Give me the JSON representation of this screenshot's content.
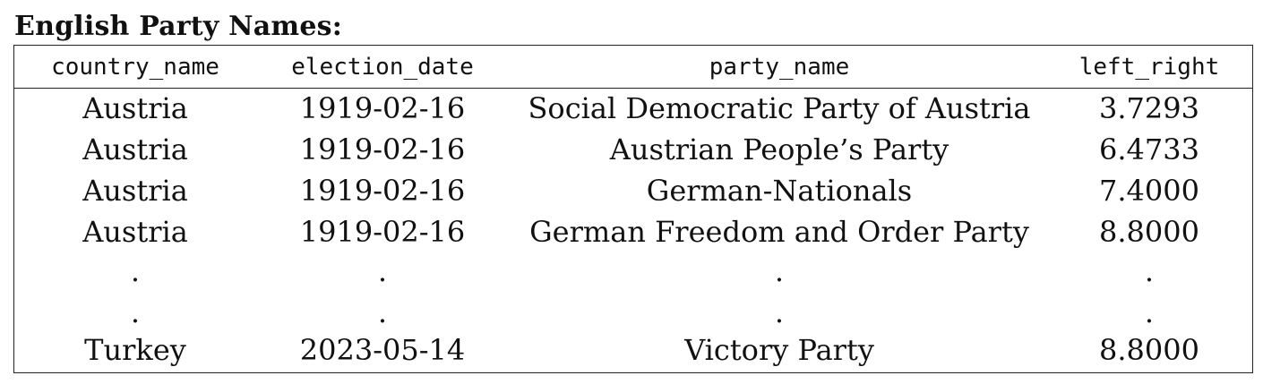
{
  "title": "English Party Names:",
  "columns": [
    "country_name",
    "election_date",
    "party_name",
    "left_right"
  ],
  "rows": [
    [
      "Austria",
      "1919-02-16",
      "Social Democratic Party of Austria",
      "3.7293"
    ],
    [
      "Austria",
      "1919-02-16",
      "Austrian People’s Party",
      "6.4733"
    ],
    [
      "Austria",
      "1919-02-16",
      "German-Nationals",
      "7.4000"
    ],
    [
      "Austria",
      "1919-02-16",
      "German Freedom and Order Party",
      "8.8000"
    ],
    [
      ".",
      ".",
      ".",
      "."
    ],
    [
      ".",
      ".",
      ".",
      "."
    ],
    [
      "Turkey",
      "2023-05-14",
      "Victory Party",
      "8.8000"
    ]
  ]
}
